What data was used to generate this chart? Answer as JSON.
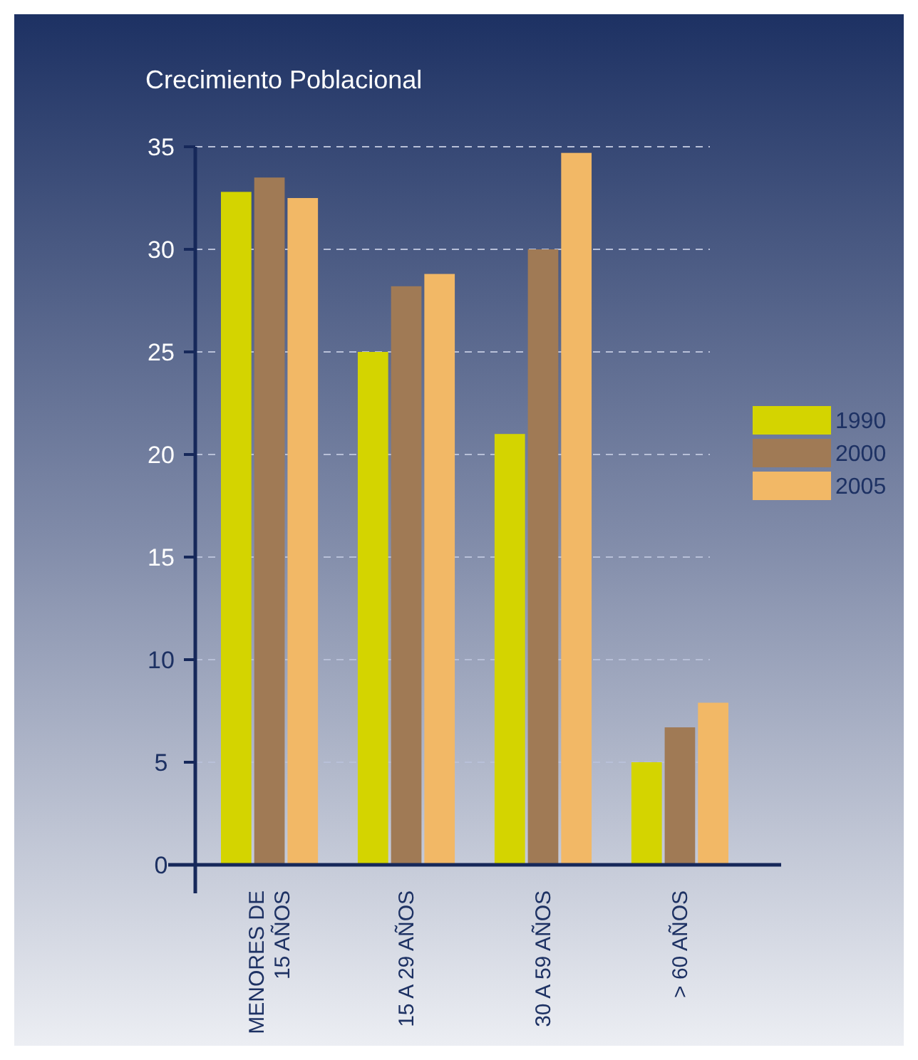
{
  "chart_data": {
    "type": "bar",
    "title": "Crecimiento Poblacional",
    "categories": [
      "MENORES DE 15 AÑOS",
      "15 A 29 AÑOS",
      "30 A 59 AÑOS",
      "> 60 AÑOS"
    ],
    "series": [
      {
        "name": "1990",
        "color": "#d4d400",
        "values": [
          32.8,
          25,
          21,
          5
        ]
      },
      {
        "name": "2000",
        "color": "#a07a55",
        "values": [
          33.5,
          28.2,
          30,
          6.7
        ]
      },
      {
        "name": "2005",
        "color": "#f2b866",
        "values": [
          32.5,
          28.8,
          34.7,
          7.9
        ]
      }
    ],
    "ylim": [
      0,
      35
    ],
    "yticks": [
      0,
      5,
      10,
      15,
      20,
      25,
      30,
      35
    ],
    "grid": "y",
    "legend": "right"
  }
}
